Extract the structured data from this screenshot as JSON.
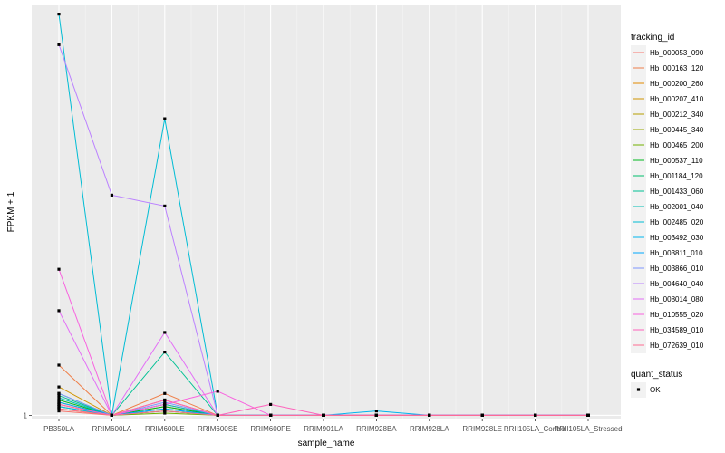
{
  "chart_data": {
    "type": "line",
    "xlabel": "sample_name",
    "ylabel": "FPKM + 1",
    "y_ticks": [
      "1"
    ],
    "categories": [
      "PB350LA",
      "RRIM600LA",
      "RRIM600LE",
      "RRIM600SE",
      "RRIM600PE",
      "RRIM901LA",
      "RRIM928BA",
      "RRIM928LA",
      "RRIM928LE",
      "RRII105LA_Control",
      "RRII105LA_Stressed"
    ],
    "y_range": [
      0.85,
      19.8
    ],
    "grid": true,
    "legend_position": "right",
    "series": [
      {
        "name": "Hb_000053_090",
        "color": "#F8766D",
        "values": [
          1.2,
          1.0,
          1.5,
          1.0,
          1.0,
          1.0,
          1.0,
          1.0,
          1.0,
          1.0,
          1.0
        ]
      },
      {
        "name": "Hb_000163_120",
        "color": "#EF7F49",
        "values": [
          3.3,
          1.0,
          2.0,
          1.0,
          1.0,
          1.0,
          1.0,
          1.0,
          1.0,
          1.0,
          1.0
        ]
      },
      {
        "name": "Hb_000200_260",
        "color": "#E28A00",
        "values": [
          1.5,
          1.0,
          1.7,
          1.0,
          1.0,
          1.0,
          1.0,
          1.0,
          1.0,
          1.0,
          1.0
        ]
      },
      {
        "name": "Hb_000207_410",
        "color": "#D09400",
        "values": [
          2.3,
          1.0,
          1.4,
          1.0,
          1.0,
          1.0,
          1.0,
          1.0,
          1.0,
          1.0,
          1.0
        ]
      },
      {
        "name": "Hb_000212_340",
        "color": "#B79F00",
        "values": [
          1.3,
          1.0,
          1.3,
          1.0,
          1.0,
          1.0,
          1.0,
          1.0,
          1.0,
          1.0,
          1.0
        ]
      },
      {
        "name": "Hb_000445_340",
        "color": "#9AA800",
        "values": [
          1.6,
          1.0,
          1.2,
          1.0,
          1.0,
          1.0,
          1.0,
          1.0,
          1.0,
          1.0,
          1.0
        ]
      },
      {
        "name": "Hb_000465_200",
        "color": "#72B000",
        "values": [
          1.4,
          1.0,
          1.1,
          1.0,
          1.0,
          1.0,
          1.0,
          1.0,
          1.0,
          1.0,
          1.0
        ]
      },
      {
        "name": "Hb_000537_110",
        "color": "#00B81F",
        "values": [
          1.7,
          1.0,
          1.4,
          1.0,
          1.0,
          1.0,
          1.0,
          1.0,
          1.0,
          1.0,
          1.0
        ]
      },
      {
        "name": "Hb_001184_120",
        "color": "#00BE6C",
        "values": [
          2.0,
          1.0,
          1.2,
          1.0,
          1.0,
          1.0,
          1.0,
          1.0,
          1.0,
          1.0,
          1.0
        ]
      },
      {
        "name": "Hb_001433_060",
        "color": "#00C094",
        "values": [
          1.9,
          1.0,
          3.9,
          1.0,
          1.0,
          1.0,
          1.0,
          1.0,
          1.0,
          1.0,
          1.0
        ]
      },
      {
        "name": "Hb_002001_040",
        "color": "#00BFB4",
        "values": [
          1.8,
          1.0,
          1.5,
          1.0,
          1.0,
          1.0,
          1.0,
          1.0,
          1.0,
          1.0,
          1.0
        ]
      },
      {
        "name": "Hb_002485_020",
        "color": "#00BCD4",
        "values": [
          19.4,
          1.0,
          14.6,
          1.0,
          1.0,
          1.0,
          1.0,
          1.0,
          1.0,
          1.0,
          1.0
        ]
      },
      {
        "name": "Hb_003492_030",
        "color": "#00B5EE",
        "values": [
          1.4,
          1.0,
          1.3,
          1.0,
          1.0,
          1.0,
          1.2,
          1.0,
          1.0,
          1.0,
          1.0
        ]
      },
      {
        "name": "Hb_003811_010",
        "color": "#00A8FF",
        "values": [
          1.6,
          1.0,
          1.3,
          1.0,
          1.0,
          1.0,
          1.0,
          1.0,
          1.0,
          1.0,
          1.0
        ]
      },
      {
        "name": "Hb_003866_010",
        "color": "#7F96FF",
        "values": [
          2.0,
          1.0,
          1.6,
          1.0,
          1.0,
          1.0,
          1.0,
          1.0,
          1.0,
          1.0,
          1.0
        ]
      },
      {
        "name": "Hb_004640_040",
        "color": "#BB81FF",
        "values": [
          18.0,
          11.1,
          10.6,
          1.0,
          1.0,
          1.0,
          1.0,
          1.0,
          1.0,
          1.0,
          1.0
        ]
      },
      {
        "name": "Hb_008014_080",
        "color": "#E36FF6",
        "values": [
          5.8,
          1.0,
          4.8,
          1.0,
          1.0,
          1.0,
          1.0,
          1.0,
          1.0,
          1.0,
          1.0
        ]
      },
      {
        "name": "Hb_010555_020",
        "color": "#F863DF",
        "values": [
          7.7,
          1.0,
          1.5,
          2.1,
          1.0,
          1.0,
          1.0,
          1.0,
          1.0,
          1.0,
          1.0
        ]
      },
      {
        "name": "Hb_034589_010",
        "color": "#FF62BC",
        "values": [
          1.5,
          1.0,
          1.7,
          1.0,
          1.5,
          1.0,
          1.0,
          1.0,
          1.0,
          1.0,
          1.0
        ]
      },
      {
        "name": "Hb_072639_010",
        "color": "#FF6C91",
        "values": [
          1.3,
          1.0,
          1.2,
          1.0,
          1.0,
          1.0,
          1.0,
          1.0,
          1.0,
          1.0,
          1.0
        ]
      }
    ]
  },
  "legend": {
    "title": "tracking_id",
    "shape_title": "quant_status",
    "shape_items": [
      "OK"
    ]
  }
}
